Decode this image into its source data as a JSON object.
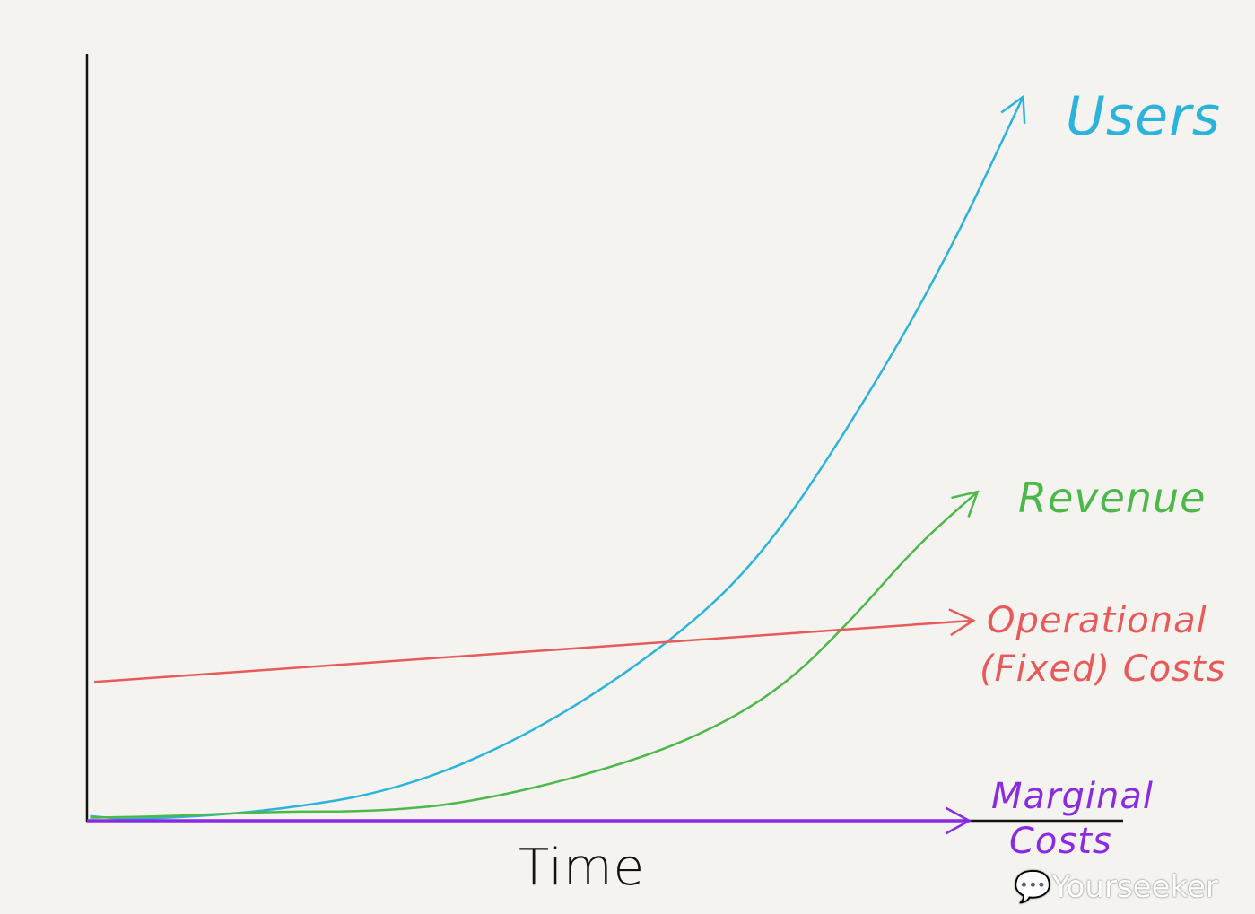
{
  "chart_data": {
    "type": "line",
    "title": "",
    "xlabel": "Time",
    "ylabel": "",
    "axis_ticks": "none",
    "grid": false,
    "legend": "inline labels at line ends (right)",
    "style": "hand-drawn sketch, lines end in arrowheads",
    "xlim": [
      0,
      10
    ],
    "ylim": [
      0,
      10
    ],
    "series": [
      {
        "name": "Users",
        "color": "#2bb3dc",
        "x": [
          0.03,
          0.46,
          1.76,
          3.06,
          4.36,
          5.66,
          6.53,
          7.4,
          8.26,
          9.05
        ],
        "y": [
          0.06,
          0.01,
          0.12,
          0.41,
          1.17,
          2.34,
          3.45,
          5.2,
          7.19,
          9.44
        ]
      },
      {
        "name": "Revenue",
        "color": "#4cb84a",
        "x": [
          0.03,
          0.89,
          1.76,
          2.8,
          3.67,
          4.8,
          5.84,
          6.7,
          7.4,
          8.01,
          8.61
        ],
        "y": [
          0.04,
          0.06,
          0.12,
          0.12,
          0.23,
          0.58,
          1.05,
          1.7,
          2.63,
          3.57,
          4.29
        ]
      },
      {
        "name": "Operational (Fixed) Costs",
        "color": "#e85a5a",
        "x": [
          0.07,
          8.57
        ],
        "y": [
          1.81,
          2.61
        ]
      },
      {
        "name": "Marginal Costs",
        "color": "#8a2be2",
        "x": [
          0,
          8.53
        ],
        "y": [
          0,
          0
        ]
      }
    ],
    "labels": {
      "users": "Users",
      "revenue": "Revenue",
      "operational_1": "Operational",
      "operational_2": "(Fixed) Costs",
      "marginal_1": "Marginal",
      "marginal_2": "Costs"
    }
  },
  "watermark": "Yourseeker"
}
